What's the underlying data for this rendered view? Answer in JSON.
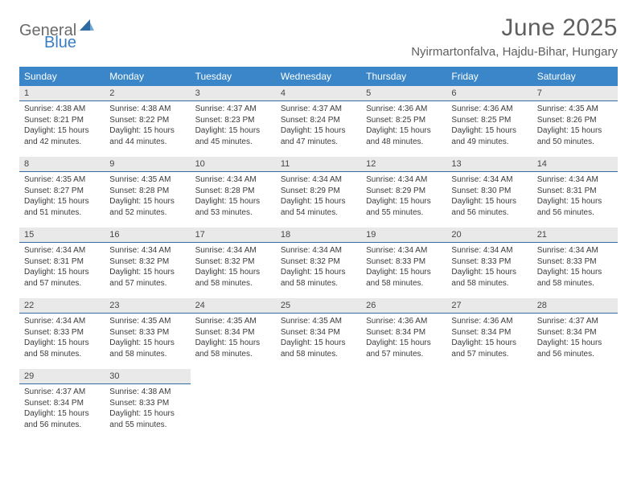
{
  "logo": {
    "word1": "General",
    "word2": "Blue"
  },
  "title": "June 2025",
  "location": "Nyirmartonfalva, Hajdu-Bihar, Hungary",
  "colors": {
    "header_bg": "#3a86c8",
    "header_text": "#ffffff",
    "daynum_bg": "#e9e9e9",
    "daynum_border": "#2f6aa3",
    "body_text": "#3b3b3b",
    "title_text": "#5f5f5f",
    "logo_gray": "#6a6a6a",
    "logo_blue": "#3a7fc4"
  },
  "weekdays": [
    "Sunday",
    "Monday",
    "Tuesday",
    "Wednesday",
    "Thursday",
    "Friday",
    "Saturday"
  ],
  "weeks": [
    [
      {
        "n": "1",
        "sr": "4:38 AM",
        "ss": "8:21 PM",
        "dl": "15 hours and 42 minutes."
      },
      {
        "n": "2",
        "sr": "4:38 AM",
        "ss": "8:22 PM",
        "dl": "15 hours and 44 minutes."
      },
      {
        "n": "3",
        "sr": "4:37 AM",
        "ss": "8:23 PM",
        "dl": "15 hours and 45 minutes."
      },
      {
        "n": "4",
        "sr": "4:37 AM",
        "ss": "8:24 PM",
        "dl": "15 hours and 47 minutes."
      },
      {
        "n": "5",
        "sr": "4:36 AM",
        "ss": "8:25 PM",
        "dl": "15 hours and 48 minutes."
      },
      {
        "n": "6",
        "sr": "4:36 AM",
        "ss": "8:25 PM",
        "dl": "15 hours and 49 minutes."
      },
      {
        "n": "7",
        "sr": "4:35 AM",
        "ss": "8:26 PM",
        "dl": "15 hours and 50 minutes."
      }
    ],
    [
      {
        "n": "8",
        "sr": "4:35 AM",
        "ss": "8:27 PM",
        "dl": "15 hours and 51 minutes."
      },
      {
        "n": "9",
        "sr": "4:35 AM",
        "ss": "8:28 PM",
        "dl": "15 hours and 52 minutes."
      },
      {
        "n": "10",
        "sr": "4:34 AM",
        "ss": "8:28 PM",
        "dl": "15 hours and 53 minutes."
      },
      {
        "n": "11",
        "sr": "4:34 AM",
        "ss": "8:29 PM",
        "dl": "15 hours and 54 minutes."
      },
      {
        "n": "12",
        "sr": "4:34 AM",
        "ss": "8:29 PM",
        "dl": "15 hours and 55 minutes."
      },
      {
        "n": "13",
        "sr": "4:34 AM",
        "ss": "8:30 PM",
        "dl": "15 hours and 56 minutes."
      },
      {
        "n": "14",
        "sr": "4:34 AM",
        "ss": "8:31 PM",
        "dl": "15 hours and 56 minutes."
      }
    ],
    [
      {
        "n": "15",
        "sr": "4:34 AM",
        "ss": "8:31 PM",
        "dl": "15 hours and 57 minutes."
      },
      {
        "n": "16",
        "sr": "4:34 AM",
        "ss": "8:32 PM",
        "dl": "15 hours and 57 minutes."
      },
      {
        "n": "17",
        "sr": "4:34 AM",
        "ss": "8:32 PM",
        "dl": "15 hours and 58 minutes."
      },
      {
        "n": "18",
        "sr": "4:34 AM",
        "ss": "8:32 PM",
        "dl": "15 hours and 58 minutes."
      },
      {
        "n": "19",
        "sr": "4:34 AM",
        "ss": "8:33 PM",
        "dl": "15 hours and 58 minutes."
      },
      {
        "n": "20",
        "sr": "4:34 AM",
        "ss": "8:33 PM",
        "dl": "15 hours and 58 minutes."
      },
      {
        "n": "21",
        "sr": "4:34 AM",
        "ss": "8:33 PM",
        "dl": "15 hours and 58 minutes."
      }
    ],
    [
      {
        "n": "22",
        "sr": "4:34 AM",
        "ss": "8:33 PM",
        "dl": "15 hours and 58 minutes."
      },
      {
        "n": "23",
        "sr": "4:35 AM",
        "ss": "8:33 PM",
        "dl": "15 hours and 58 minutes."
      },
      {
        "n": "24",
        "sr": "4:35 AM",
        "ss": "8:34 PM",
        "dl": "15 hours and 58 minutes."
      },
      {
        "n": "25",
        "sr": "4:35 AM",
        "ss": "8:34 PM",
        "dl": "15 hours and 58 minutes."
      },
      {
        "n": "26",
        "sr": "4:36 AM",
        "ss": "8:34 PM",
        "dl": "15 hours and 57 minutes."
      },
      {
        "n": "27",
        "sr": "4:36 AM",
        "ss": "8:34 PM",
        "dl": "15 hours and 57 minutes."
      },
      {
        "n": "28",
        "sr": "4:37 AM",
        "ss": "8:34 PM",
        "dl": "15 hours and 56 minutes."
      }
    ],
    [
      {
        "n": "29",
        "sr": "4:37 AM",
        "ss": "8:34 PM",
        "dl": "15 hours and 56 minutes."
      },
      {
        "n": "30",
        "sr": "4:38 AM",
        "ss": "8:33 PM",
        "dl": "15 hours and 55 minutes."
      },
      null,
      null,
      null,
      null,
      null
    ]
  ],
  "labels": {
    "sunrise": "Sunrise: ",
    "sunset": "Sunset: ",
    "daylight": "Daylight: "
  }
}
